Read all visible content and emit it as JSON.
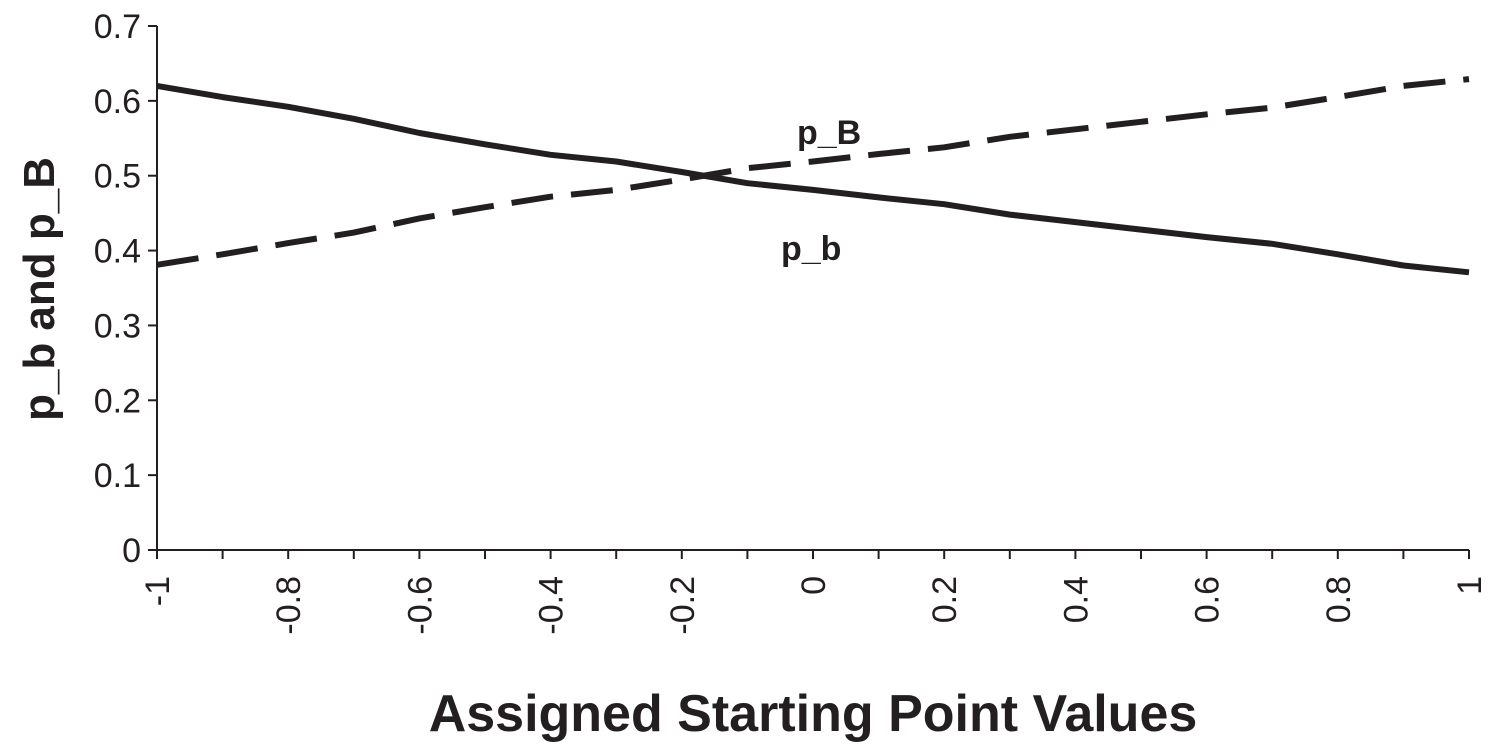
{
  "chart_data": {
    "type": "line",
    "title": "",
    "xlabel": "Assigned Starting Point Values",
    "ylabel": "p_b and p_B",
    "xlim": [
      -1,
      1
    ],
    "ylim": [
      0,
      0.7
    ],
    "x_tick_labels": [
      "-1",
      "-0.8",
      "-0.6",
      "-0.4",
      "-0.2",
      "0",
      "0.2",
      "0.4",
      "0.6",
      "0.8",
      "1"
    ],
    "y_tick_labels": [
      "0",
      "0.1",
      "0.2",
      "0.3",
      "0.4",
      "0.5",
      "0.6",
      "0.7"
    ],
    "x": [
      -1,
      -0.9,
      -0.8,
      -0.7,
      -0.6,
      -0.5,
      -0.4,
      -0.3,
      -0.2,
      -0.1,
      0,
      0.1,
      0.2,
      0.3,
      0.4,
      0.5,
      0.6,
      0.7,
      0.8,
      0.9,
      1
    ],
    "series": [
      {
        "name": "p_b",
        "line_style": "solid",
        "color": "#231f20",
        "values": [
          0.62,
          0.605,
          0.592,
          0.576,
          0.557,
          0.542,
          0.528,
          0.519,
          0.505,
          0.49,
          0.481,
          0.471,
          0.462,
          0.448,
          0.438,
          0.428,
          0.418,
          0.409,
          0.395,
          0.38,
          0.371
        ]
      },
      {
        "name": "p_B",
        "line_style": "dashed",
        "color": "#231f20",
        "values": [
          0.381,
          0.395,
          0.41,
          0.424,
          0.443,
          0.458,
          0.472,
          0.481,
          0.495,
          0.51,
          0.519,
          0.529,
          0.538,
          0.552,
          0.562,
          0.572,
          0.582,
          0.591,
          0.605,
          0.62,
          0.629
        ]
      }
    ],
    "grid": false,
    "legend": "none",
    "series_labels_placement": "inline"
  }
}
